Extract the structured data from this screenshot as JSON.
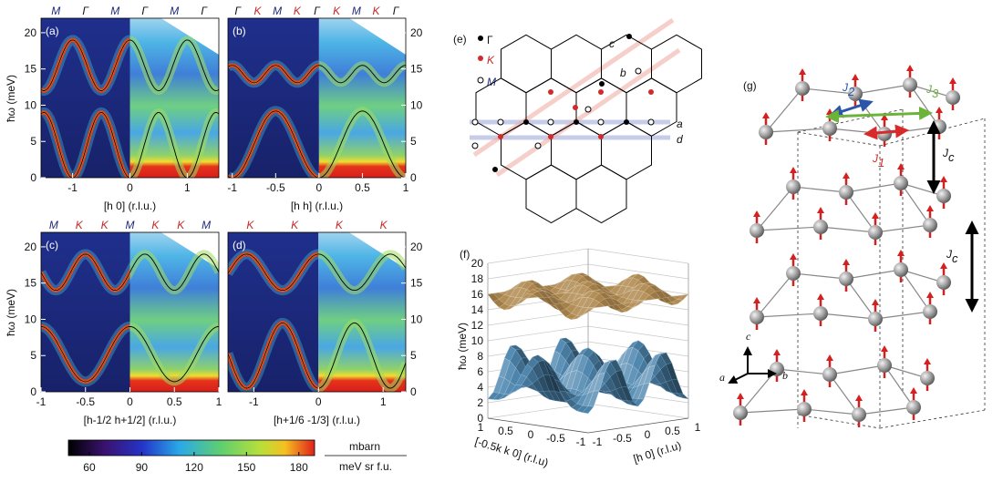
{
  "panels": [
    {
      "label": "(a)",
      "top_labels": [
        "M",
        "Γ",
        "M",
        "Γ",
        "M",
        "Γ"
      ],
      "xlim": [
        -1.55,
        1.55
      ],
      "ylim": [
        0,
        22
      ],
      "xticks": [
        -1,
        0,
        1
      ],
      "yticks": [
        0,
        5,
        10,
        15,
        20
      ],
      "xlabel": "[h 0] (r.l.u.)"
    },
    {
      "label": "(b)",
      "top_labels": [
        "Γ",
        "K",
        "M",
        "K",
        "Γ",
        "K",
        "M",
        "K",
        "Γ"
      ],
      "xlim": [
        -1.05,
        1
      ],
      "ylim": [
        0,
        22
      ],
      "xticks": [
        -1,
        -0.5,
        0,
        0.5,
        1
      ],
      "yticks": [
        0,
        5,
        10,
        15,
        20
      ],
      "xlabel": "[h h] (r.l.u.)"
    },
    {
      "label": "(c)",
      "top_labels": [
        "M",
        "K",
        "K",
        "M",
        "K",
        "K",
        "M"
      ],
      "xlim": [
        -1,
        1
      ],
      "ylim": [
        0,
        22
      ],
      "xticks": [
        -1,
        -0.5,
        0,
        0.5,
        1
      ],
      "yticks": [
        0,
        5,
        10,
        15,
        20
      ],
      "xlabel": "[h-1/2 h+1/2] (r.l.u.)"
    },
    {
      "label": "(d)",
      "top_labels": [
        "K",
        "K",
        "K",
        "K"
      ],
      "xlim": [
        -1.4,
        1.35
      ],
      "ylim": [
        0,
        22
      ],
      "xticks": [
        -1,
        0,
        1
      ],
      "yticks": [
        0,
        5,
        10,
        15,
        20
      ],
      "xlabel": "[h+1/6 -1/3] (r.l.u.)"
    }
  ],
  "ylabel": "ħω (meV)",
  "colorbar": {
    "range": [
      48,
      189
    ],
    "ticks": [
      60,
      90,
      120,
      150,
      180
    ],
    "unit_top": "mbarn",
    "unit_bottom": "meV sr f.u."
  },
  "panel_e": {
    "label": "(e)",
    "legend": [
      "Γ",
      "K",
      "M"
    ],
    "lines": [
      "a",
      "b",
      "c",
      "d"
    ]
  },
  "panel_f": {
    "label": "(f)",
    "zlabel": "ħω (meV)",
    "zticks": [
      0,
      2,
      4,
      6,
      8,
      10,
      12,
      14,
      16,
      18,
      20
    ],
    "xlabel": "[-0.5k k 0] (r.l.u)",
    "xticks": [
      1,
      0.5,
      0,
      -0.5,
      -1
    ],
    "ylabel": "[h 0] (r.l.u)",
    "yticks": [
      -1,
      -0.5,
      0,
      0.5,
      1
    ]
  },
  "panel_g": {
    "label": "(g)",
    "couplings": [
      {
        "symbol": "J",
        "sub": "2"
      },
      {
        "symbol": "J",
        "sub": "3"
      },
      {
        "symbol": "J",
        "sub": "1"
      },
      {
        "symbol": "J",
        "sub": "c"
      },
      {
        "symbol": "J",
        "sub": "c"
      }
    ],
    "axes": [
      "c",
      "a",
      "b"
    ]
  }
}
